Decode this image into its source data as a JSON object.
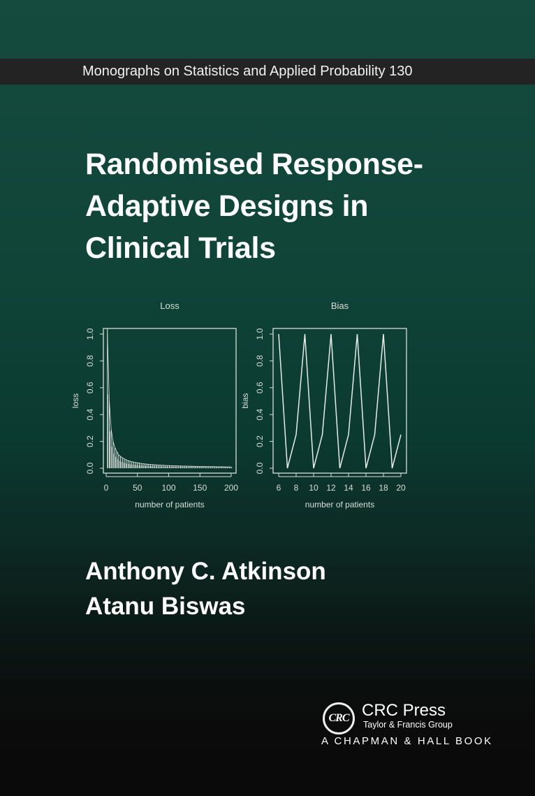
{
  "series_banner": "Monographs on Statistics and Applied Probability 130",
  "title_lines": [
    "Randomised Response-",
    "Adaptive Designs in",
    "Clinical Trials"
  ],
  "authors": [
    "Anthony C. Atkinson",
    "Atanu Biswas"
  ],
  "publisher": {
    "logo_text": "CRC",
    "name": "CRC Press",
    "group": "Taylor & Francis Group",
    "imprint": "A CHAPMAN & HALL BOOK"
  },
  "colors": {
    "banner": "#232323",
    "background_top": "#154a3e",
    "background_bottom": "#0a0a0a",
    "text": "#ffffff"
  },
  "chart_data": [
    {
      "type": "bar",
      "title": "Loss",
      "xlabel": "number of patients",
      "ylabel": "loss",
      "xlim": [
        0,
        200
      ],
      "ylim": [
        0,
        1
      ],
      "xticks": [
        "0",
        "50",
        "100",
        "150",
        "200"
      ],
      "yticks": [
        "0.0",
        "0.2",
        "0.4",
        "0.6",
        "0.8",
        "1.0"
      ],
      "grid": false,
      "x": [
        2,
        5,
        8,
        11,
        14,
        17,
        20,
        23,
        26,
        29,
        32,
        35,
        38,
        41,
        44,
        47,
        50,
        53,
        56,
        59,
        62,
        65,
        68,
        71,
        74,
        77,
        80,
        83,
        86,
        89,
        92,
        95,
        98,
        101,
        104,
        107,
        110,
        113,
        116,
        119,
        122,
        125,
        128,
        131,
        134,
        137,
        140,
        143,
        146,
        149,
        152,
        155,
        158,
        161,
        164,
        167,
        170,
        173,
        176,
        179,
        182,
        185,
        188,
        191,
        194,
        197,
        200
      ],
      "values": [
        1.0,
        0.5,
        0.29,
        0.2,
        0.155,
        0.125,
        0.1,
        0.088,
        0.078,
        0.07,
        0.063,
        0.057,
        0.053,
        0.049,
        0.046,
        0.043,
        0.04,
        0.038,
        0.036,
        0.034,
        0.032,
        0.031,
        0.029,
        0.028,
        0.027,
        0.026,
        0.025,
        0.024,
        0.023,
        0.022,
        0.022,
        0.021,
        0.02,
        0.02,
        0.019,
        0.019,
        0.018,
        0.018,
        0.017,
        0.017,
        0.016,
        0.016,
        0.016,
        0.015,
        0.015,
        0.015,
        0.014,
        0.014,
        0.014,
        0.013,
        0.013,
        0.013,
        0.013,
        0.012,
        0.012,
        0.012,
        0.012,
        0.012,
        0.011,
        0.011,
        0.011,
        0.011,
        0.011,
        0.01,
        0.01,
        0.01,
        0.01
      ]
    },
    {
      "type": "line",
      "title": "Bias",
      "xlabel": "number of patients",
      "ylabel": "bias",
      "xlim": [
        6,
        20
      ],
      "ylim": [
        0,
        1
      ],
      "xticks": [
        "6",
        "8",
        "10",
        "12",
        "14",
        "16",
        "18",
        "20"
      ],
      "yticks": [
        "0.0",
        "0.2",
        "0.4",
        "0.6",
        "0.8",
        "1.0"
      ],
      "grid": false,
      "x": [
        6,
        7,
        8,
        9,
        10,
        11,
        12,
        13,
        14,
        15,
        16,
        17,
        18,
        19,
        20
      ],
      "values": [
        1,
        0,
        0.25,
        1,
        0,
        0.25,
        1,
        0,
        0.25,
        1,
        0,
        0.25,
        1,
        0,
        0.25
      ]
    }
  ]
}
